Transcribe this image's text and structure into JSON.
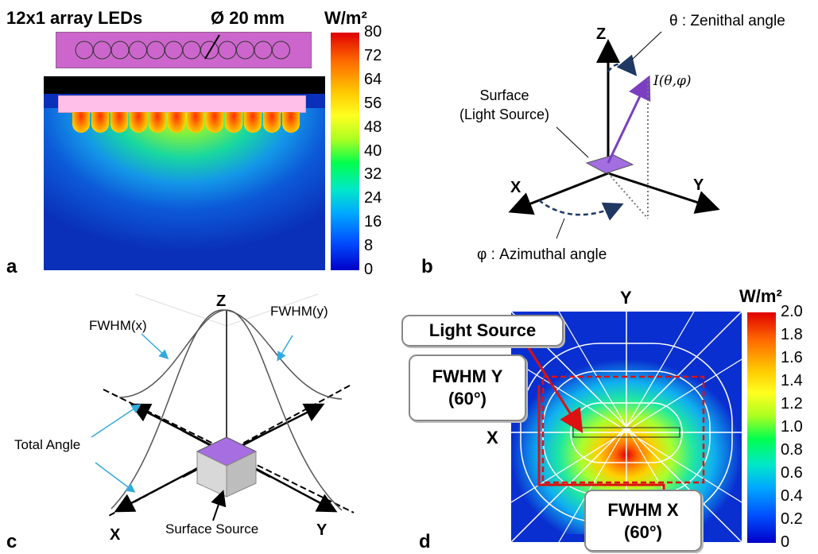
{
  "panel_a": {
    "letter": "a",
    "array_label": "12x1 array LEDs",
    "diameter_label": "Ø 20 mm",
    "unit": "W/m²",
    "colorbar_ticks": [
      "80",
      "72",
      "64",
      "56",
      "48",
      "40",
      "32",
      "24",
      "16",
      "8",
      "0"
    ]
  },
  "panel_b": {
    "letter": "b",
    "z_axis": "Z",
    "x_axis": "X",
    "y_axis": "Y",
    "zenithal_label": "θ : Zenithal angle",
    "azimuthal_label": "φ : Azimuthal angle",
    "intensity_label": "I(θ,φ)",
    "surface_label_1": "Surface",
    "surface_label_2": "(Light Source)"
  },
  "panel_c": {
    "letter": "c",
    "z_axis": "Z",
    "x_axis": "X",
    "y_axis": "Y",
    "fwhm_x": "FWHM(x)",
    "fwhm_y": "FWHM(y)",
    "total_angle": "Total Angle",
    "surface_source": "Surface Source"
  },
  "panel_d": {
    "letter": "d",
    "x_axis": "X",
    "y_axis": "Y",
    "unit": "W/m²",
    "light_source": "Light Source",
    "fwhm_y_1": "FWHM Y",
    "fwhm_y_2": "(60°)",
    "fwhm_x_1": "FWHM X",
    "fwhm_x_2": "(60°)",
    "colorbar_ticks": [
      "2.0",
      "1.8",
      "1.6",
      "1.4",
      "1.2",
      "1.0",
      "0.8",
      "0.6",
      "0.4",
      "0.2",
      "0"
    ]
  }
}
